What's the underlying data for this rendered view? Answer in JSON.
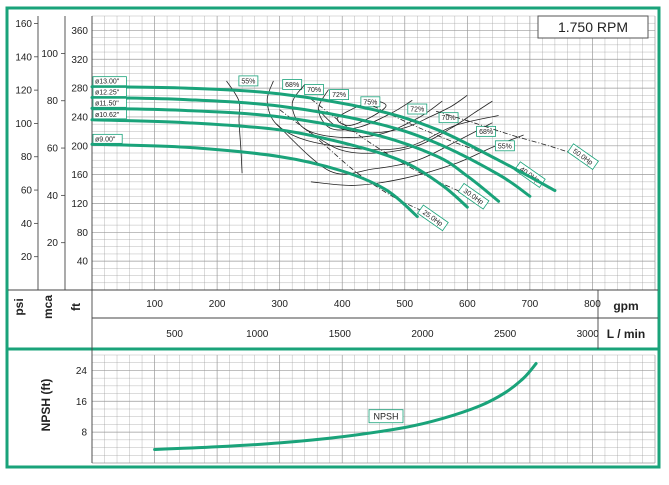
{
  "chart_data": {
    "type": "line",
    "title": "1.750 RPM",
    "colors": {
      "frame": "#1aa37a",
      "curve": "#1aa37a",
      "grid": "#9a9a9a",
      "line": "#222222"
    },
    "axes": {
      "psi": {
        "label": "psi",
        "ticks": [
          "20",
          "40",
          "60",
          "80",
          "100",
          "120",
          "140",
          "160"
        ]
      },
      "mca": {
        "label": "mca",
        "ticks": [
          "20",
          "40",
          "60",
          "80",
          "100"
        ]
      },
      "ft": {
        "label": "ft",
        "ticks": [
          "40",
          "80",
          "120",
          "160",
          "200",
          "240",
          "280",
          "320",
          "360"
        ]
      },
      "gpm": {
        "label": "gpm",
        "ticks": [
          "100",
          "200",
          "300",
          "400",
          "500",
          "600",
          "700",
          "800"
        ]
      },
      "lmin": {
        "label": "L / min",
        "ticks": [
          "500",
          "1000",
          "1500",
          "2000",
          "2500",
          "3000"
        ]
      },
      "npsh": {
        "label": "NPSH (ft)",
        "ticks": [
          "8",
          "16",
          "24"
        ]
      }
    },
    "xlim": [
      0,
      900
    ],
    "ylim": [
      0,
      380
    ],
    "npsh_ylim": [
      0,
      28
    ],
    "impellers": [
      {
        "name": "ø13.00\"",
        "points": [
          [
            0,
            282
          ],
          [
            150,
            280
          ],
          [
            300,
            272
          ],
          [
            450,
            250
          ],
          [
            550,
            223
          ],
          [
            650,
            180
          ],
          [
            740,
            138
          ]
        ]
      },
      {
        "name": "ø12.25\"",
        "points": [
          [
            0,
            267
          ],
          [
            150,
            264
          ],
          [
            300,
            255
          ],
          [
            450,
            232
          ],
          [
            550,
            204
          ],
          [
            650,
            160
          ],
          [
            700,
            130
          ]
        ]
      },
      {
        "name": "ø11.50\"",
        "points": [
          [
            0,
            252
          ],
          [
            150,
            249
          ],
          [
            300,
            240
          ],
          [
            450,
            216
          ],
          [
            550,
            186
          ],
          [
            600,
            158
          ],
          [
            650,
            123
          ]
        ]
      },
      {
        "name": "ø10.62\"",
        "points": [
          [
            0,
            236
          ],
          [
            150,
            232
          ],
          [
            300,
            222
          ],
          [
            420,
            200
          ],
          [
            500,
            177
          ],
          [
            560,
            145
          ],
          [
            600,
            115
          ]
        ]
      },
      {
        "name": "ø9.00\"",
        "points": [
          [
            0,
            202
          ],
          [
            150,
            198
          ],
          [
            300,
            185
          ],
          [
            400,
            165
          ],
          [
            470,
            139
          ],
          [
            520,
            102
          ]
        ]
      }
    ],
    "efficiency": [
      {
        "label": "55%",
        "label_at": [
          250,
          290
        ],
        "points": [
          [
            215,
            290
          ],
          [
            235,
            262
          ],
          [
            235,
            235
          ],
          [
            238,
            195
          ],
          [
            240,
            162
          ]
        ]
      },
      {
        "label": "68%",
        "label_at": [
          320,
          285
        ],
        "points": [
          [
            290,
            290
          ],
          [
            280,
            262
          ],
          [
            295,
            230
          ],
          [
            345,
            207
          ],
          [
            440,
            195
          ],
          [
            510,
            200
          ],
          [
            580,
            228
          ],
          [
            650,
            242
          ]
        ]
      },
      {
        "label": "70%",
        "label_at": [
          355,
          278
        ],
        "points": [
          [
            340,
            285
          ],
          [
            320,
            258
          ],
          [
            338,
            225
          ],
          [
            392,
            212
          ],
          [
            460,
            216
          ],
          [
            520,
            238
          ],
          [
            560,
            262
          ]
        ]
      },
      {
        "label": "72%",
        "label_at": [
          395,
          271
        ],
        "points": [
          [
            378,
            278
          ],
          [
            362,
            250
          ],
          [
            382,
            224
          ],
          [
            428,
            226
          ],
          [
            478,
            245
          ],
          [
            512,
            263
          ]
        ]
      },
      {
        "label": "75%",
        "label_at": [
          445,
          261
        ],
        "points": [
          [
            418,
            252
          ],
          [
            392,
            238
          ],
          [
            410,
            228
          ],
          [
            442,
            238
          ],
          [
            470,
            255
          ],
          [
            450,
            262
          ],
          [
            418,
            252
          ]
        ]
      },
      {
        "label": "72%",
        "label_at": [
          520,
          251
        ],
        "points": [
          [
            362,
            250
          ],
          [
            395,
            225
          ],
          [
            448,
            218
          ],
          [
            500,
            225
          ],
          [
            540,
            240
          ],
          [
            575,
            255
          ],
          [
            600,
            270
          ]
        ]
      },
      {
        "label": "70%",
        "label_at": [
          570,
          239
        ],
        "points": [
          [
            338,
            225
          ],
          [
            395,
            195
          ],
          [
            455,
            190
          ],
          [
            520,
            200
          ],
          [
            575,
            225
          ],
          [
            610,
            245
          ],
          [
            640,
            262
          ]
        ]
      },
      {
        "label": "68%",
        "label_at": [
          630,
          220
        ],
        "points": [
          [
            295,
            230
          ],
          [
            380,
            165
          ],
          [
            450,
            168
          ],
          [
            520,
            180
          ],
          [
            580,
            205
          ],
          [
            640,
            232
          ]
        ]
      },
      {
        "label": "55%",
        "label_at": [
          660,
          200
        ],
        "points": [
          [
            350,
            150
          ],
          [
            420,
            145
          ],
          [
            500,
            155
          ],
          [
            580,
            175
          ],
          [
            640,
            198
          ],
          [
            690,
            215
          ]
        ]
      }
    ],
    "power": [
      {
        "label": "25.0Hp",
        "label_at": [
          545,
          100
        ],
        "points": [
          [
            300,
            250
          ],
          [
            360,
            210
          ],
          [
            420,
            165
          ],
          [
            480,
            130
          ],
          [
            540,
            105
          ]
        ]
      },
      {
        "label": "30.0Hp",
        "label_at": [
          610,
          130
        ],
        "points": [
          [
            350,
            265
          ],
          [
            410,
            225
          ],
          [
            470,
            190
          ],
          [
            530,
            160
          ],
          [
            600,
            132
          ]
        ]
      },
      {
        "label": "40.0Hp",
        "label_at": [
          700,
          160
        ],
        "points": [
          [
            450,
            255
          ],
          [
            510,
            230
          ],
          [
            570,
            208
          ],
          [
            630,
            188
          ],
          [
            690,
            162
          ]
        ]
      },
      {
        "label": "50.0Hp",
        "label_at": [
          785,
          185
        ],
        "points": [
          [
            550,
            248
          ],
          [
            610,
            232
          ],
          [
            670,
            215
          ],
          [
            730,
            200
          ],
          [
            780,
            186
          ]
        ]
      }
    ],
    "npsh": {
      "name": "NPSH",
      "label_at": [
        470,
        12
      ],
      "points": [
        [
          100,
          3.5
        ],
        [
          200,
          4.2
        ],
        [
          300,
          5.2
        ],
        [
          400,
          6.8
        ],
        [
          500,
          9.2
        ],
        [
          560,
          11.5
        ],
        [
          620,
          14.8
        ],
        [
          660,
          18.2
        ],
        [
          690,
          22
        ],
        [
          710,
          25.8
        ]
      ]
    }
  }
}
